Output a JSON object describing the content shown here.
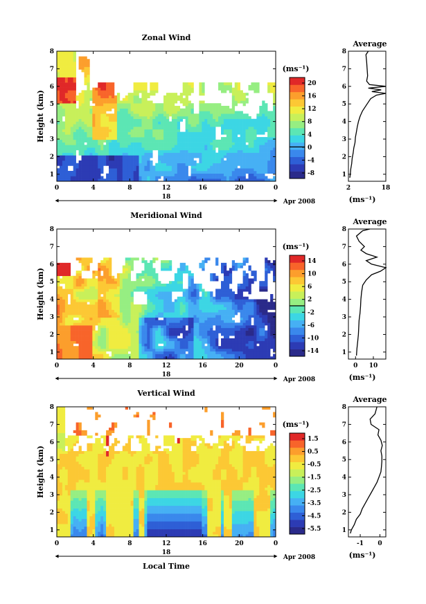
{
  "colors": [
    "#2a2a8a",
    "#2c3bb4",
    "#2e5fd6",
    "#3a88ec",
    "#46b0f4",
    "#3cd6e4",
    "#5ce6b4",
    "#96ee82",
    "#c8f05a",
    "#f0ec40",
    "#fcc834",
    "#fc9e2c",
    "#f8642a",
    "#e02828"
  ],
  "x_label": "Local Time",
  "date_label": "Apr 2008",
  "day_label": "18",
  "ylabel": "Height (km)",
  "unit_label": "(ms⁻¹)",
  "chart_data": [
    {
      "type": "heatmap",
      "title": "Zonal Wind",
      "x_ticks": [
        "0",
        "4",
        "8",
        "12",
        "16",
        "20",
        "0"
      ],
      "y_ticks": [
        "1",
        "2",
        "3",
        "4",
        "5",
        "6",
        "7",
        "8"
      ],
      "xlim": [
        0,
        24
      ],
      "ylim": [
        0.6,
        8
      ],
      "colorbar_ticks": [
        "20",
        "16",
        "12",
        "8",
        "4",
        "0",
        "-4",
        "-8"
      ],
      "colorbar_range": [
        -10,
        22
      ],
      "avg_title": "Average",
      "avg_x_ticks": [
        "2",
        "18"
      ],
      "avg_xlim": [
        2,
        18
      ],
      "avg_profile": {
        "height": [
          0.8,
          1.0,
          1.3,
          1.6,
          1.9,
          2.2,
          2.5,
          2.8,
          3.1,
          3.4,
          3.7,
          4.0,
          4.3,
          4.6,
          4.9,
          5.1,
          5.3,
          5.5,
          5.6,
          5.7,
          5.8,
          5.9,
          6.0,
          6.1,
          6.3,
          6.6,
          7.0,
          7.4,
          7.8,
          8.0
        ],
        "value": [
          2.6,
          2.8,
          3.0,
          3.4,
          3.6,
          4.0,
          4.3,
          4.8,
          5.0,
          5.4,
          5.8,
          6.3,
          7.0,
          8.0,
          9.5,
          10.5,
          11.5,
          14.0,
          18.0,
          12.0,
          16.0,
          10.5,
          18.0,
          11.0,
          9.8,
          10.2,
          10.0,
          9.8,
          9.5,
          10.5
        ]
      }
    },
    {
      "type": "heatmap",
      "title": "Meridional Wind",
      "x_ticks": [
        "0",
        "4",
        "8",
        "12",
        "16",
        "20",
        "0"
      ],
      "y_ticks": [
        "1",
        "2",
        "3",
        "4",
        "5",
        "6",
        "7",
        "8"
      ],
      "xlim": [
        0,
        24
      ],
      "ylim": [
        0.6,
        8
      ],
      "colorbar_ticks": [
        "14",
        "10",
        "6",
        "2",
        "-2",
        "-6",
        "-10",
        "-14"
      ],
      "colorbar_range": [
        -16,
        16
      ],
      "avg_title": "Average",
      "avg_x_ticks": [
        "0",
        "10"
      ],
      "avg_xlim": [
        -4,
        17
      ],
      "avg_profile": {
        "height": [
          0.8,
          1.2,
          1.6,
          2.0,
          2.4,
          2.8,
          3.2,
          3.6,
          4.0,
          4.4,
          4.8,
          5.1,
          5.4,
          5.6,
          5.8,
          6.0,
          6.2,
          6.4,
          6.6,
          6.8,
          7.0,
          7.3,
          7.6,
          7.9,
          8.0
        ],
        "value": [
          0.5,
          0.8,
          1.2,
          1.6,
          1.8,
          2.0,
          2.5,
          2.8,
          3.0,
          3.4,
          4.0,
          6.0,
          9.0,
          14.0,
          17.0,
          9.0,
          6.0,
          12.0,
          6.0,
          3.0,
          5.0,
          2.0,
          0.5,
          4.0,
          8.0
        ]
      }
    },
    {
      "type": "heatmap",
      "title": "Vertical Wind",
      "x_ticks": [
        "0",
        "4",
        "8",
        "12",
        "16",
        "20",
        "0"
      ],
      "y_ticks": [
        "1",
        "2",
        "3",
        "4",
        "5",
        "6",
        "7",
        "8"
      ],
      "xlim": [
        0,
        24
      ],
      "ylim": [
        0.6,
        8
      ],
      "colorbar_ticks": [
        "1.5",
        "0.5",
        "-0.5",
        "-1.5",
        "-2.5",
        "-3.5",
        "-4.5",
        "-5.5"
      ],
      "colorbar_range": [
        -6,
        2
      ],
      "avg_title": "Average",
      "avg_x_ticks": [
        "-1",
        "0"
      ],
      "avg_xlim": [
        -1.6,
        0.3
      ],
      "avg_profile": {
        "height": [
          0.8,
          1.0,
          1.3,
          1.6,
          1.9,
          2.2,
          2.5,
          2.8,
          3.1,
          3.4,
          3.7,
          4.0,
          4.3,
          4.6,
          4.9,
          5.2,
          5.5,
          5.8,
          6.1,
          6.4,
          6.7,
          7.0,
          7.3,
          7.6,
          8.0
        ],
        "value": [
          -1.5,
          -1.45,
          -1.3,
          -1.2,
          -1.0,
          -0.9,
          -0.75,
          -0.6,
          -0.45,
          -0.3,
          -0.15,
          -0.05,
          0.05,
          0.08,
          0.1,
          0.1,
          0.05,
          0.12,
          0.05,
          -0.1,
          -0.05,
          -0.45,
          -0.5,
          -0.25,
          -0.15
        ]
      }
    }
  ]
}
